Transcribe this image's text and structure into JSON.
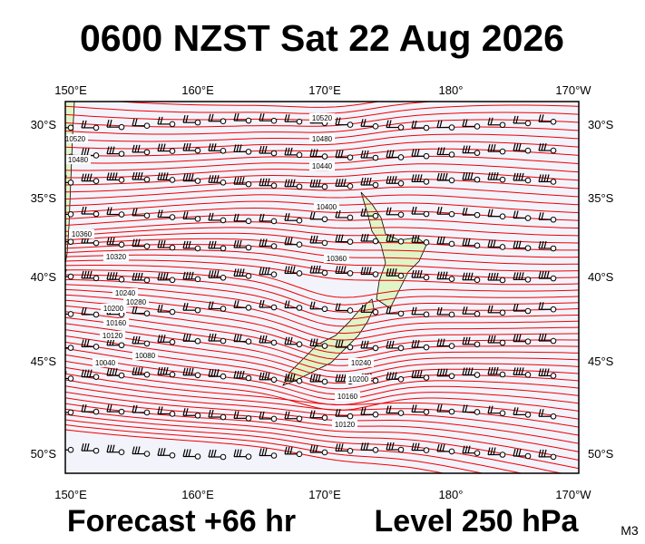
{
  "header": {
    "title": "0600 NZST Sat 22 Aug 2026"
  },
  "map": {
    "longitude_labels": [
      "150°E",
      "160°E",
      "170°E",
      "180°",
      "170°W"
    ],
    "latitude_labels": [
      "30°S",
      "35°S",
      "40°S",
      "45°S",
      "50°S"
    ],
    "contour_labels": [
      "10520",
      "10520",
      "10480",
      "10480",
      "10440",
      "10400",
      "10360",
      "10360",
      "10320",
      "10280",
      "10240",
      "10200",
      "10160",
      "10120",
      "10080",
      "10040",
      "10240",
      "10200",
      "10160",
      "10120"
    ]
  },
  "footer": {
    "forecast": "Forecast +66 hr",
    "level": "Level 250 hPa",
    "code": "M3"
  }
}
